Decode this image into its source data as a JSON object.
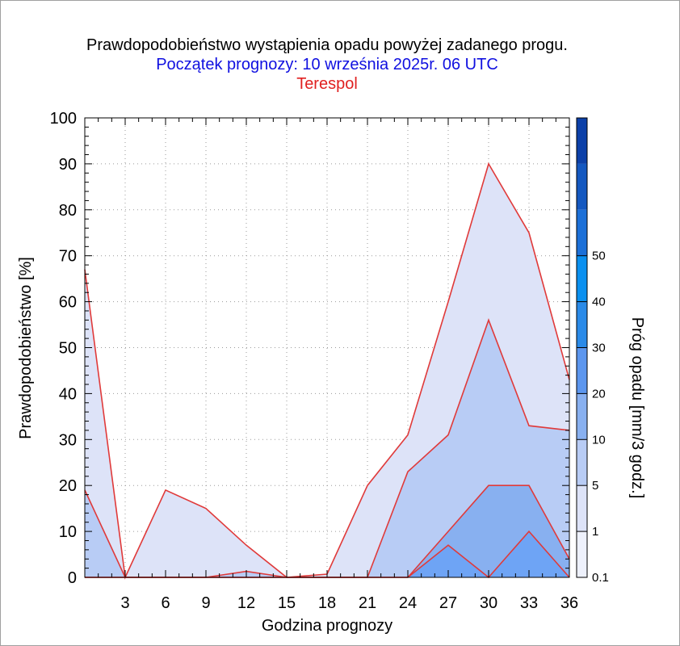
{
  "chart_data": {
    "type": "area",
    "title": "Prawdopodobieństwo wystąpienia opadu powyżej zadanego progu.",
    "subtitle": "Początek prognozy: 10 września 2025r. 06 UTC",
    "location": "Terespol",
    "xlabel": "Godzina prognozy",
    "ylabel": "Prawdopodobieństwo [%]",
    "colorbar_label": "Próg opadu [mm/3 godz.]",
    "xlim": [
      0,
      36
    ],
    "ylim": [
      0,
      100
    ],
    "x_ticks": [
      3,
      6,
      9,
      12,
      15,
      18,
      21,
      24,
      27,
      30,
      33,
      36
    ],
    "y_ticks": [
      0,
      10,
      20,
      30,
      40,
      50,
      60,
      70,
      80,
      90,
      100
    ],
    "x": [
      0,
      3,
      6,
      9,
      12,
      15,
      18,
      21,
      24,
      27,
      30,
      33,
      36
    ],
    "series": [
      {
        "name": "0.1",
        "color": "#dde3f8",
        "values": [
          67,
          0,
          19,
          15,
          7,
          0,
          0.7,
          20,
          31,
          60,
          90,
          75,
          43
        ]
      },
      {
        "name": "1",
        "color": "#b8ccf5",
        "values": [
          19,
          0,
          0,
          0,
          1.3,
          0,
          0,
          0,
          23,
          31,
          56,
          33,
          32
        ]
      },
      {
        "name": "5",
        "color": "#88b0f0",
        "values": [
          0,
          0,
          0,
          0,
          0,
          0,
          0,
          0,
          0,
          10,
          20,
          20,
          4
        ]
      },
      {
        "name": "10",
        "color": "#6ea4f5",
        "values": [
          0,
          0,
          0,
          0,
          0,
          0,
          0,
          0,
          0,
          7,
          0,
          10,
          0
        ]
      }
    ],
    "line_color": "#e03a3a",
    "colorbar": {
      "tick_labels": [
        "0.1",
        "1",
        "5",
        "10",
        "20",
        "30",
        "40",
        "50"
      ],
      "colors": [
        "#eef1fc",
        "#dde3f8",
        "#b8ccf5",
        "#88b0f0",
        "#5c96ee",
        "#2a8ae8",
        "#0a90f0",
        "#1c70d8",
        "#1458c0",
        "#0c40a8"
      ]
    },
    "grid": true
  }
}
